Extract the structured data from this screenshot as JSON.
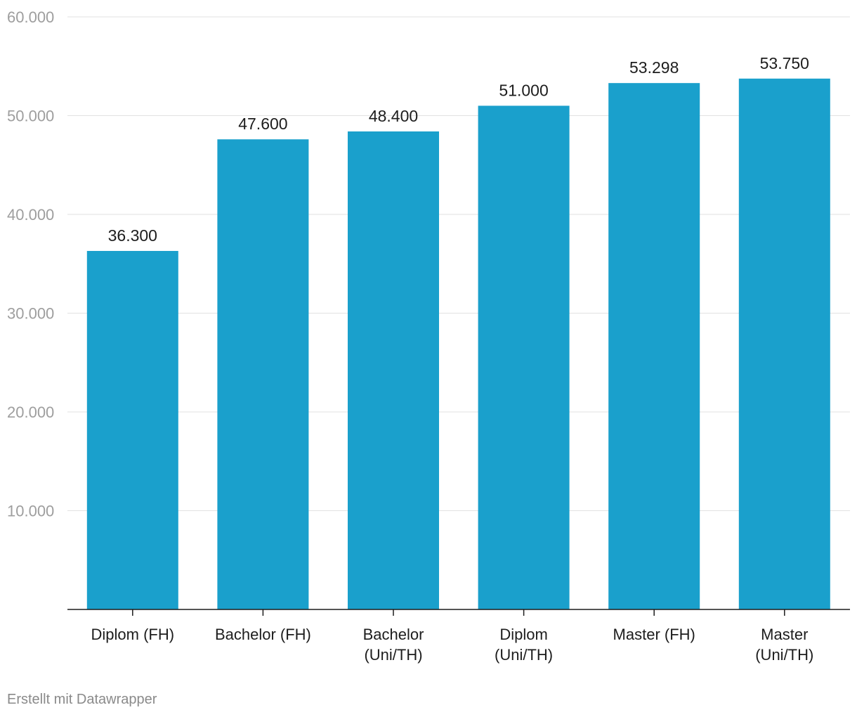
{
  "chart_data": {
    "type": "bar",
    "categories": [
      [
        "Diplom (FH)"
      ],
      [
        "Bachelor (FH)"
      ],
      [
        "Bachelor",
        "(Uni/TH)"
      ],
      [
        "Diplom",
        "(Uni/TH)"
      ],
      [
        "Master (FH)"
      ],
      [
        "Master",
        "(Uni/TH)"
      ]
    ],
    "values": [
      36300,
      47600,
      48400,
      51000,
      53298,
      53750
    ],
    "value_labels": [
      "36.300",
      "47.600",
      "48.400",
      "51.000",
      "53.298",
      "53.750"
    ],
    "ylim": [
      0,
      60000
    ],
    "yticks": [
      10000,
      20000,
      30000,
      40000,
      50000,
      60000
    ],
    "ytick_labels": [
      "10.000",
      "20.000",
      "30.000",
      "40.000",
      "50.000",
      "60.000"
    ],
    "grid": true,
    "bar_color": "#1aa0cc",
    "title": "",
    "xlabel": "",
    "ylabel": ""
  },
  "footer": {
    "credit": "Erstellt mit Datawrapper"
  }
}
